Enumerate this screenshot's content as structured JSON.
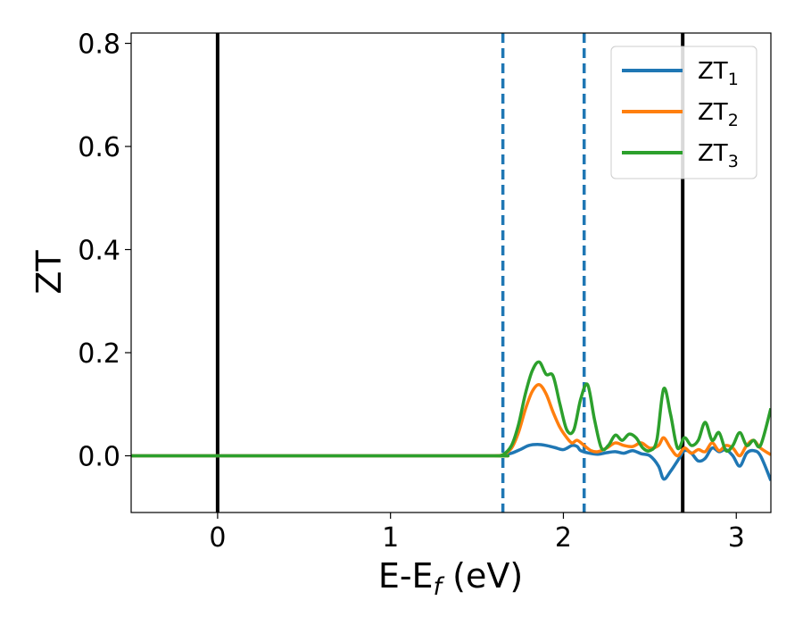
{
  "chart_data": {
    "type": "line",
    "xlabel": "E-E",
    "xlabel_sub": "f",
    "xlabel_suffix": " (eV)",
    "ylabel": "ZT",
    "xlim": [
      -0.5,
      3.2
    ],
    "ylim": [
      -0.11,
      0.82
    ],
    "xticks": [
      0,
      1,
      2,
      3
    ],
    "xtick_labels": [
      "0",
      "1",
      "2",
      "3"
    ],
    "yticks": [
      0.0,
      0.2,
      0.4,
      0.6,
      0.8
    ],
    "ytick_labels": [
      "0.0",
      "0.2",
      "0.4",
      "0.6",
      "0.8"
    ],
    "grid": false,
    "legend_position": "top-right",
    "vlines": [
      {
        "x": 0.0,
        "style": "solid",
        "color": "#000000"
      },
      {
        "x": 2.69,
        "style": "solid",
        "color": "#000000"
      },
      {
        "x": 1.65,
        "style": "dashed",
        "color": "#1f77b4"
      },
      {
        "x": 2.12,
        "style": "dashed",
        "color": "#1f77b4"
      }
    ],
    "series": [
      {
        "name": "ZT",
        "sub": "1",
        "color": "#1f77b4",
        "x": [
          -0.5,
          1.5,
          1.6,
          1.65,
          1.7,
          1.75,
          1.8,
          1.85,
          1.9,
          1.95,
          2.0,
          2.05,
          2.08,
          2.1,
          2.15,
          2.2,
          2.25,
          2.3,
          2.35,
          2.4,
          2.45,
          2.5,
          2.55,
          2.58,
          2.62,
          2.66,
          2.7,
          2.74,
          2.78,
          2.82,
          2.86,
          2.9,
          2.94,
          2.98,
          3.02,
          3.06,
          3.1,
          3.14,
          3.2
        ],
        "y": [
          0,
          0,
          0,
          0.001,
          0.005,
          0.012,
          0.02,
          0.022,
          0.02,
          0.016,
          0.012,
          0.02,
          0.018,
          0.01,
          0.005,
          0.003,
          0.006,
          0.008,
          0.005,
          0.01,
          0.004,
          0.0,
          -0.02,
          -0.045,
          -0.03,
          -0.01,
          0.01,
          0.005,
          -0.01,
          -0.005,
          0.015,
          0.008,
          0.012,
          0.0,
          -0.02,
          0.005,
          0.01,
          0.0,
          -0.048
        ]
      },
      {
        "name": "ZT",
        "sub": "2",
        "color": "#ff7f0e",
        "x": [
          -0.5,
          1.5,
          1.6,
          1.65,
          1.7,
          1.74,
          1.78,
          1.82,
          1.86,
          1.9,
          1.94,
          1.98,
          2.02,
          2.05,
          2.08,
          2.12,
          2.16,
          2.2,
          2.25,
          2.3,
          2.35,
          2.4,
          2.45,
          2.5,
          2.55,
          2.58,
          2.62,
          2.66,
          2.7,
          2.74,
          2.78,
          2.82,
          2.86,
          2.9,
          2.94,
          2.98,
          3.02,
          3.06,
          3.1,
          3.14,
          3.2
        ],
        "y": [
          0,
          0,
          0,
          0.002,
          0.015,
          0.045,
          0.09,
          0.125,
          0.138,
          0.12,
          0.085,
          0.055,
          0.035,
          0.025,
          0.03,
          0.02,
          0.01,
          0.008,
          0.015,
          0.025,
          0.02,
          0.018,
          0.025,
          0.015,
          0.02,
          0.035,
          0.015,
          0.0,
          0.015,
          0.005,
          0.012,
          0.008,
          0.025,
          0.01,
          0.02,
          0.015,
          0.0,
          0.02,
          0.03,
          0.015,
          0.002
        ]
      },
      {
        "name": "ZT",
        "sub": "3",
        "color": "#2ca02c",
        "x": [
          -0.5,
          1.5,
          1.6,
          1.65,
          1.7,
          1.74,
          1.78,
          1.82,
          1.86,
          1.9,
          1.94,
          1.98,
          2.02,
          2.06,
          2.1,
          2.14,
          2.18,
          2.22,
          2.26,
          2.3,
          2.34,
          2.38,
          2.42,
          2.46,
          2.5,
          2.54,
          2.58,
          2.62,
          2.66,
          2.7,
          2.74,
          2.78,
          2.82,
          2.86,
          2.9,
          2.94,
          2.98,
          3.02,
          3.06,
          3.1,
          3.14,
          3.2
        ],
        "y": [
          0,
          0,
          0,
          0.002,
          0.02,
          0.06,
          0.12,
          0.165,
          0.182,
          0.158,
          0.155,
          0.1,
          0.05,
          0.05,
          0.11,
          0.138,
          0.07,
          0.015,
          0.02,
          0.04,
          0.03,
          0.042,
          0.035,
          0.015,
          0.01,
          0.03,
          0.13,
          0.08,
          0.015,
          0.035,
          0.02,
          0.03,
          0.065,
          0.03,
          0.045,
          0.01,
          0.02,
          0.045,
          0.02,
          0.03,
          0.02,
          0.092
        ]
      }
    ]
  }
}
